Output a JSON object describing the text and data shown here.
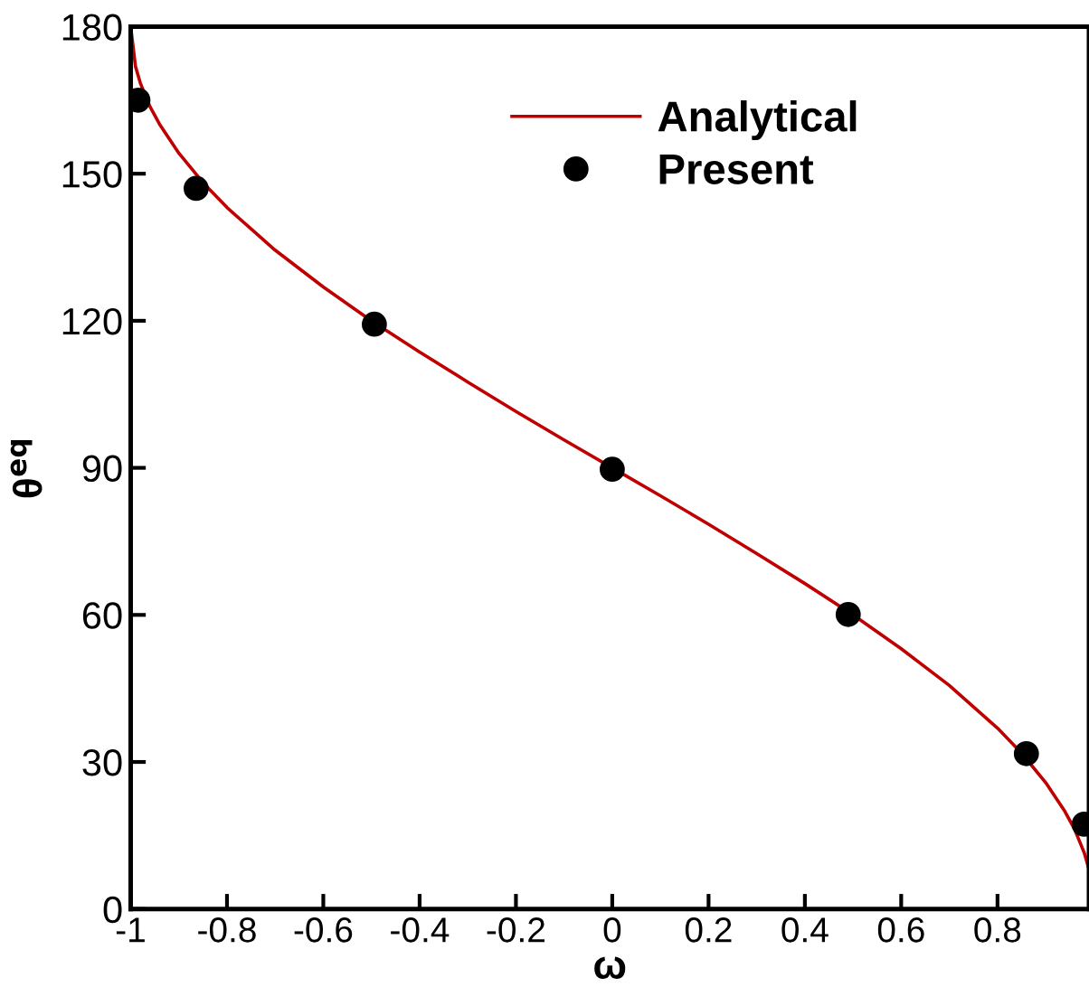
{
  "chart_data": {
    "type": "line",
    "xlabel": "ω",
    "ylabel": "θ$^{eq}$",
    "series": [
      {
        "name": "Analytical",
        "color": "#c00000",
        "marker": "none",
        "line_style": "solid",
        "x": [
          -1,
          -0.99,
          -0.98,
          -0.96,
          -0.94,
          -0.9,
          -0.85,
          -0.8,
          -0.7,
          -0.6,
          -0.5,
          -0.4,
          -0.3,
          -0.2,
          -0.1,
          0,
          0.1,
          0.2,
          0.3,
          0.4,
          0.5,
          0.6,
          0.7,
          0.8,
          0.85,
          0.9,
          0.94,
          0.96,
          0.98,
          0.99
        ],
        "values": [
          180,
          171.9,
          168.5,
          163.7,
          160.1,
          154.2,
          148.2,
          143.1,
          134.4,
          126.9,
          120,
          113.6,
          107.5,
          101.5,
          95.7,
          90,
          84.3,
          78.5,
          72.5,
          66.4,
          60,
          53.1,
          45.6,
          36.9,
          31.8,
          25.8,
          19.9,
          16.3,
          11.5,
          8.1
        ]
      },
      {
        "name": "Present",
        "type": "scatter",
        "color": "#000000",
        "marker": "circle",
        "x": [
          -0.985,
          -0.864,
          -0.494,
          0,
          0.49,
          0.86,
          0.98
        ],
        "values": [
          165,
          147,
          119.3,
          89.7,
          60.1,
          31.7,
          17.3
        ]
      }
    ],
    "xlim": [
      -1,
      0.99
    ],
    "xticks": [
      -1,
      -0.8,
      -0.6,
      -0.4,
      -0.2,
      0,
      0.2,
      0.4,
      0.6,
      0.8
    ],
    "ylim": [
      0,
      180
    ],
    "yticks": [
      0,
      30,
      60,
      90,
      120,
      150,
      180
    ],
    "grid": false,
    "legend": "top right"
  }
}
